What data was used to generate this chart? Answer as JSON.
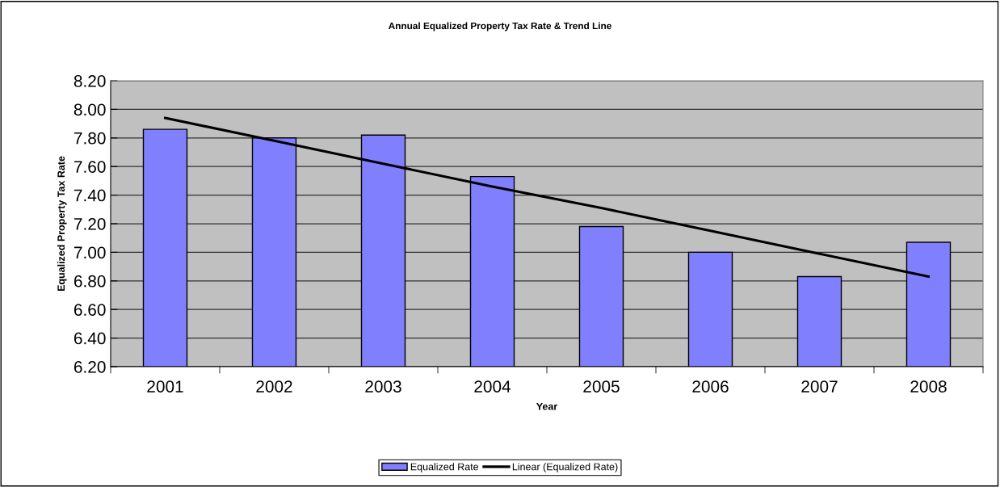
{
  "chart_data": {
    "type": "bar",
    "title": "Annual Equalized Property Tax Rate & Trend Line",
    "xlabel": "Year",
    "ylabel": "Equalized Property Tax Rate",
    "categories": [
      "2001",
      "2002",
      "2003",
      "2004",
      "2005",
      "2006",
      "2007",
      "2008"
    ],
    "series": [
      {
        "name": "Equalized Rate",
        "color": "#8080ff",
        "values": [
          7.86,
          7.8,
          7.82,
          7.53,
          7.18,
          7.0,
          6.83,
          7.07
        ]
      },
      {
        "name": "Linear (Equalized Rate)",
        "type": "line",
        "color": "#000000",
        "values": [
          7.94,
          7.78,
          7.62,
          7.46,
          7.31,
          7.15,
          6.99,
          6.83
        ]
      }
    ],
    "ylim": [
      6.2,
      8.2
    ],
    "yticks": [
      {
        "value": 6.2,
        "label": "6.20"
      },
      {
        "value": 6.4,
        "label": "6.40"
      },
      {
        "value": 6.6,
        "label": "6.60"
      },
      {
        "value": 6.8,
        "label": "6.80"
      },
      {
        "value": 7.0,
        "label": "7.00"
      },
      {
        "value": 7.2,
        "label": "7.20"
      },
      {
        "value": 7.4,
        "label": "7.40"
      },
      {
        "value": 7.6,
        "label": "7.60"
      },
      {
        "value": 7.8,
        "label": "7.80"
      },
      {
        "value": 8.0,
        "label": "8.00"
      },
      {
        "value": 8.2,
        "label": "8.20"
      }
    ],
    "grid": "y",
    "legend": "bottom",
    "marker": "none",
    "line_style": "solid"
  }
}
